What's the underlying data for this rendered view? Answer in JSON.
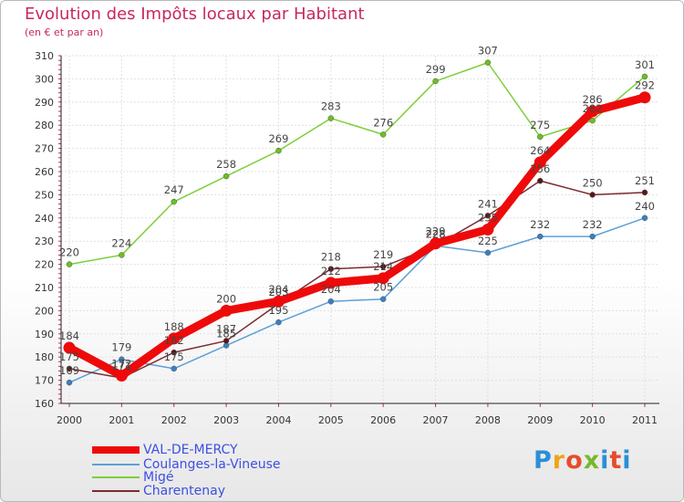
{
  "title": "Evolution des Impôts locaux par Habitant",
  "subtitle": "(en € et par an)",
  "logo_text": "Proxiti",
  "chart_data": {
    "type": "line",
    "title": "Evolution des Impôts locaux par Habitant",
    "subtitle": "(en € et par an)",
    "xlabel": "",
    "ylabel": "",
    "categories": [
      "2000",
      "2001",
      "2002",
      "2003",
      "2004",
      "2005",
      "2006",
      "2007",
      "2008",
      "2009",
      "2010",
      "2011"
    ],
    "ylim": [
      160,
      310
    ],
    "yticks": [
      160,
      170,
      180,
      190,
      200,
      210,
      220,
      230,
      240,
      250,
      260,
      270,
      280,
      290,
      300,
      310
    ],
    "grid": true,
    "legend_position": "bottom-left",
    "series": [
      {
        "name": "Migé",
        "color": "#7ccf3a",
        "dot": "#6cc020",
        "emphasis": false,
        "values": [
          220,
          224,
          247,
          258,
          269,
          283,
          276,
          299,
          307,
          275,
          282,
          301
        ],
        "labels": [
          "220",
          "224",
          "247",
          "258",
          "269",
          "283",
          "276",
          "299",
          "307",
          "275",
          "282",
          "301"
        ]
      },
      {
        "name": "Coulanges-la-Vineuse",
        "color": "#5d9fd6",
        "dot": "#3b7fc4",
        "emphasis": false,
        "values": [
          169,
          179,
          175,
          185,
          195,
          204,
          205,
          228,
          225,
          232,
          232,
          240
        ],
        "labels": [
          "169",
          "179",
          "175",
          "185",
          "195",
          "204",
          "205",
          "228",
          "225",
          "232",
          "232",
          "240"
        ]
      },
      {
        "name": "Charentenay",
        "color": "#7a2a2f",
        "dot": "#5a1518",
        "emphasis": false,
        "values": [
          175,
          171,
          182,
          187,
          203,
          218,
          219,
          228,
          241,
          256,
          250,
          251
        ],
        "labels": [
          "175",
          "171",
          "182",
          "187",
          "203",
          "218",
          "219",
          "228",
          "241",
          "256",
          "250",
          "251"
        ]
      },
      {
        "name": "VAL-DE-MERCY",
        "color": "#ee0a0a",
        "dot": "#ee0a0a",
        "emphasis": true,
        "values": [
          184,
          172,
          188,
          200,
          204,
          212,
          214,
          229,
          235,
          264,
          286,
          292
        ],
        "labels": [
          "184",
          "172",
          "188",
          "200",
          "204",
          "212",
          "214",
          "229",
          "235",
          "264",
          "286",
          "292"
        ]
      }
    ]
  },
  "legend": [
    {
      "label": "VAL-DE-MERCY",
      "color": "#ee0a0a",
      "thick": true
    },
    {
      "label": "Coulanges-la-Vineuse",
      "color": "#5d9fd6",
      "thick": false
    },
    {
      "label": "Migé",
      "color": "#7ccf3a",
      "thick": false
    },
    {
      "label": "Charentenay",
      "color": "#7a2a2f",
      "thick": false
    }
  ]
}
